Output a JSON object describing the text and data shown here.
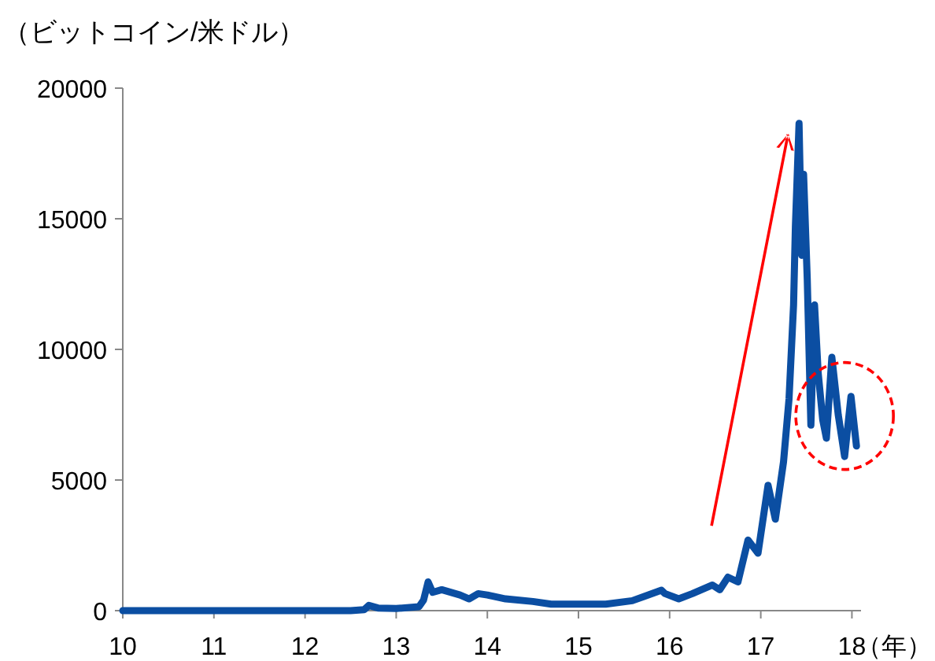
{
  "chart_data": {
    "type": "line",
    "ylabel": "（ビットコイン/米ドル）",
    "xlabel": "（年）",
    "xlim": [
      10,
      18.1
    ],
    "xticks": [
      10,
      11,
      12,
      13,
      14,
      15,
      16,
      17,
      18
    ],
    "ylim": [
      0,
      20000
    ],
    "yticks": [
      0,
      5000,
      10000,
      15000,
      20000
    ],
    "grid": false,
    "marker": "none",
    "line_style": "solid",
    "series": [
      {
        "color": "#0b4ea2",
        "x": [
          10,
          10.5,
          11,
          11.5,
          12,
          12.5,
          12.65,
          12.7,
          12.8,
          13,
          13.25,
          13.3,
          13.35,
          13.4,
          13.5,
          13.7,
          13.8,
          13.9,
          14,
          14.2,
          14.5,
          14.7,
          15,
          15.3,
          15.59,
          15.91,
          15.95,
          16.1,
          16.25,
          16.47,
          16.55,
          16.64,
          16.75,
          16.86,
          16.97,
          17.08,
          17.16,
          17.25,
          17.31,
          17.36,
          17.38,
          17.42,
          17.45,
          17.47,
          17.51,
          17.55,
          17.59,
          17.63,
          17.68,
          17.72,
          17.78,
          17.85,
          17.92,
          17.99,
          18.05
        ],
        "values": [
          0,
          0,
          0,
          0,
          0,
          0,
          40,
          200,
          100,
          80,
          150,
          400,
          1100,
          700,
          800,
          600,
          450,
          650,
          600,
          450,
          350,
          250,
          250,
          250,
          380,
          780,
          650,
          450,
          650,
          980,
          800,
          1280,
          1100,
          2700,
          2200,
          4800,
          3500,
          5700,
          8100,
          11700,
          14700,
          18650,
          13600,
          16700,
          12700,
          7100,
          11700,
          9100,
          7300,
          6600,
          9700,
          7500,
          5900,
          8200,
          6300
        ]
      }
    ]
  }
}
